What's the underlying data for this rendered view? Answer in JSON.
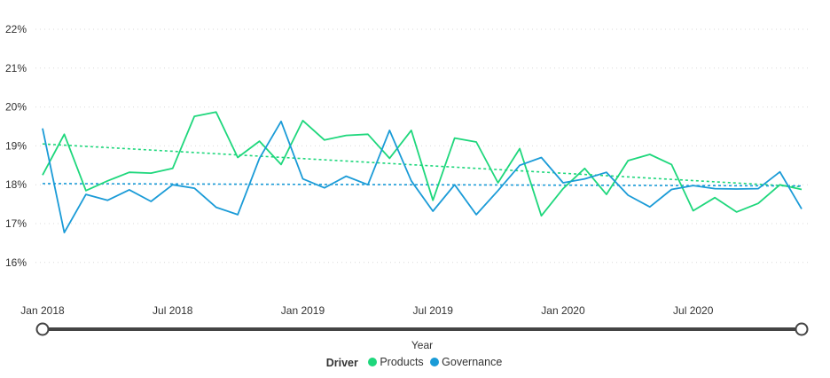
{
  "chart_data": {
    "type": "line",
    "title": "",
    "xlabel": "Year",
    "ylabel": "",
    "ylim": [
      15,
      22
    ],
    "yticks": [
      16,
      17,
      18,
      19,
      20,
      21,
      22
    ],
    "ytick_labels": [
      "16%",
      "17%",
      "18%",
      "19%",
      "20%",
      "21%",
      "22%"
    ],
    "x_range": [
      0,
      35
    ],
    "xticks": [
      0,
      6,
      12,
      18,
      24,
      30
    ],
    "xtick_labels": [
      "Jan 2018",
      "Jul 2018",
      "Jan 2019",
      "Jul 2019",
      "Jan 2020",
      "Jul 2020"
    ],
    "x": [
      "Jan 2018",
      "Feb 2018",
      "Mar 2018",
      "Apr 2018",
      "May 2018",
      "Jun 2018",
      "Jul 2018",
      "Aug 2018",
      "Sep 2018",
      "Oct 2018",
      "Nov 2018",
      "Dec 2018",
      "Jan 2019",
      "Feb 2019",
      "Mar 2019",
      "Apr 2019",
      "May 2019",
      "Jun 2019",
      "Jul 2019",
      "Aug 2019",
      "Sep 2019",
      "Oct 2019",
      "Nov 2019",
      "Dec 2019",
      "Jan 2020",
      "Feb 2020",
      "Mar 2020",
      "Apr 2020",
      "May 2020",
      "Jun 2020",
      "Jul 2020",
      "Aug 2020",
      "Sep 2020",
      "Oct 2020",
      "Nov 2020",
      "Dec 2020"
    ],
    "grid": true,
    "series": [
      {
        "name": "Products",
        "color": "#1ed77c",
        "values": [
          18.25,
          19.3,
          17.85,
          18.1,
          18.32,
          18.3,
          18.42,
          19.76,
          19.87,
          18.7,
          19.12,
          18.52,
          19.65,
          19.15,
          19.27,
          19.3,
          18.68,
          19.4,
          17.6,
          19.2,
          19.1,
          18.05,
          18.93,
          17.2,
          17.9,
          18.42,
          17.75,
          18.62,
          18.78,
          18.52,
          17.33,
          17.67,
          17.3,
          17.52,
          18.0,
          17.88
        ],
        "trend": [
          19.05,
          17.95
        ]
      },
      {
        "name": "Governance",
        "color": "#1a9bd7",
        "values": [
          19.45,
          16.77,
          17.75,
          17.6,
          17.87,
          17.57,
          18.0,
          17.91,
          17.42,
          17.23,
          18.68,
          19.63,
          18.15,
          17.92,
          18.22,
          18.0,
          19.4,
          18.1,
          17.32,
          18.0,
          17.23,
          17.85,
          18.5,
          18.7,
          18.05,
          18.15,
          18.32,
          17.73,
          17.43,
          17.88,
          17.98,
          17.9,
          17.89,
          17.9,
          18.33,
          17.38
        ],
        "trend": [
          18.03,
          17.97
        ]
      }
    ],
    "trendline_style": "dotted",
    "legend": {
      "title": "Driver",
      "position": "bottom",
      "items": [
        "Products",
        "Governance"
      ]
    },
    "range_slider": {
      "start": "Jan 2018",
      "end": "Dec 2020"
    }
  }
}
